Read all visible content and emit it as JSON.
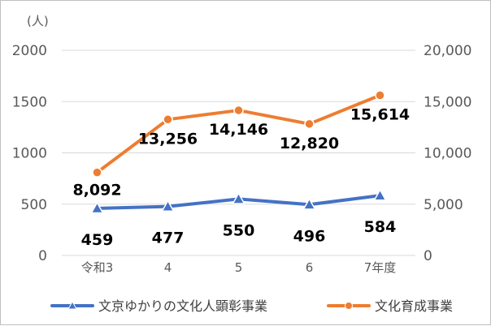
{
  "chart_data": {
    "type": "line",
    "unit_label": "(人)",
    "categories": [
      "令和3",
      "4",
      "5",
      "6",
      "7年度"
    ],
    "left_axis": {
      "ticks": [
        "0",
        "500",
        "1000",
        "1500",
        "2000"
      ],
      "range": [
        0,
        2000
      ]
    },
    "right_axis": {
      "ticks": [
        "0",
        "5,000",
        "10,000",
        "15,000",
        "20,000"
      ],
      "range": [
        0,
        20000
      ]
    },
    "grid": true,
    "legend_position": "bottom",
    "series": [
      {
        "name": "文京ゆかりの文化人顕彰事業",
        "axis": "left",
        "marker": "triangle",
        "color": "#4472c4",
        "values": [
          459,
          477,
          550,
          496,
          584
        ],
        "labels": [
          "459",
          "477",
          "550",
          "496",
          "584"
        ]
      },
      {
        "name": "文化育成事業",
        "axis": "right",
        "marker": "circle",
        "color": "#ed7d31",
        "values": [
          8092,
          13256,
          14146,
          12820,
          15614
        ],
        "labels": [
          "8,092",
          "13,256",
          "14,146",
          "12,820",
          "15,614"
        ]
      }
    ]
  }
}
